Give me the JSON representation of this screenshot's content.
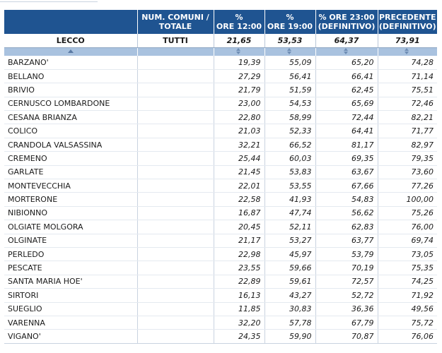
{
  "columns": [
    "",
    "NUM. COMUNI / TOTALE",
    "% ORE 12:00",
    "% ORE 19:00",
    "% ORE 23:00 (DEFINITIVO)",
    "PRECEDENTE (DEFINITIVO)"
  ],
  "columns_lines": [
    [
      "",
      ""
    ],
    [
      "NUM. COMUNI /",
      "TOTALE"
    ],
    [
      "%",
      "ORE 12:00"
    ],
    [
      "%",
      "ORE 19:00"
    ],
    [
      "% ORE 23:00",
      "(DEFINITIVO)"
    ],
    [
      "PRECEDENTE",
      "(DEFINITIVO)"
    ]
  ],
  "total_row": {
    "name": "LECCO",
    "comuni": "TUTTI",
    "ore12": "21,65",
    "ore19": "53,53",
    "ore23": "64,37",
    "precedente": "73,91"
  },
  "rows": [
    {
      "name": "BARZANO'",
      "ore12": "19,39",
      "ore19": "55,09",
      "ore23": "65,20",
      "precedente": "74,28"
    },
    {
      "name": "BELLANO",
      "ore12": "27,29",
      "ore19": "56,41",
      "ore23": "66,41",
      "precedente": "71,14"
    },
    {
      "name": "BRIVIO",
      "ore12": "21,79",
      "ore19": "51,59",
      "ore23": "62,45",
      "precedente": "75,51"
    },
    {
      "name": "CERNUSCO LOMBARDONE",
      "ore12": "23,00",
      "ore19": "54,53",
      "ore23": "65,69",
      "precedente": "72,46"
    },
    {
      "name": "CESANA BRIANZA",
      "ore12": "22,80",
      "ore19": "58,99",
      "ore23": "72,44",
      "precedente": "82,21"
    },
    {
      "name": "COLICO",
      "ore12": "21,03",
      "ore19": "52,33",
      "ore23": "64,41",
      "precedente": "71,77"
    },
    {
      "name": "CRANDOLA VALSASSINA",
      "ore12": "32,21",
      "ore19": "66,52",
      "ore23": "81,17",
      "precedente": "82,97"
    },
    {
      "name": "CREMENO",
      "ore12": "25,44",
      "ore19": "60,03",
      "ore23": "69,35",
      "precedente": "79,35"
    },
    {
      "name": "GARLATE",
      "ore12": "21,45",
      "ore19": "53,83",
      "ore23": "63,67",
      "precedente": "73,60"
    },
    {
      "name": "MONTEVECCHIA",
      "ore12": "22,01",
      "ore19": "53,55",
      "ore23": "67,66",
      "precedente": "77,26"
    },
    {
      "name": "MORTERONE",
      "ore12": "22,58",
      "ore19": "41,93",
      "ore23": "54,83",
      "precedente": "100,00"
    },
    {
      "name": "NIBIONNO",
      "ore12": "16,87",
      "ore19": "47,74",
      "ore23": "56,62",
      "precedente": "75,26"
    },
    {
      "name": "OLGIATE MOLGORA",
      "ore12": "20,45",
      "ore19": "52,11",
      "ore23": "62,83",
      "precedente": "76,00"
    },
    {
      "name": "OLGINATE",
      "ore12": "21,17",
      "ore19": "53,27",
      "ore23": "63,77",
      "precedente": "69,74"
    },
    {
      "name": "PERLEDO",
      "ore12": "22,98",
      "ore19": "45,97",
      "ore23": "53,79",
      "precedente": "73,05"
    },
    {
      "name": "PESCATE",
      "ore12": "23,55",
      "ore19": "59,66",
      "ore23": "70,19",
      "precedente": "75,35"
    },
    {
      "name": "SANTA MARIA HOE'",
      "ore12": "22,89",
      "ore19": "59,61",
      "ore23": "72,57",
      "precedente": "74,25"
    },
    {
      "name": "SIRTORI",
      "ore12": "16,13",
      "ore19": "43,27",
      "ore23": "52,72",
      "precedente": "71,92"
    },
    {
      "name": "SUEGLIO",
      "ore12": "11,85",
      "ore19": "30,83",
      "ore23": "36,36",
      "precedente": "49,56"
    },
    {
      "name": "VARENNA",
      "ore12": "32,20",
      "ore19": "57,78",
      "ore23": "67,79",
      "precedente": "75,72"
    },
    {
      "name": "VIGANO'",
      "ore12": "24,35",
      "ore19": "59,90",
      "ore23": "70,87",
      "precedente": "76,06"
    }
  ],
  "colors": {
    "header_bg": "#1f5491",
    "sort_bar_bg": "#a9c2df"
  },
  "icons": {
    "sort_asc": "triangle-up-icon",
    "sort_both": "sort-arrows-icon"
  }
}
